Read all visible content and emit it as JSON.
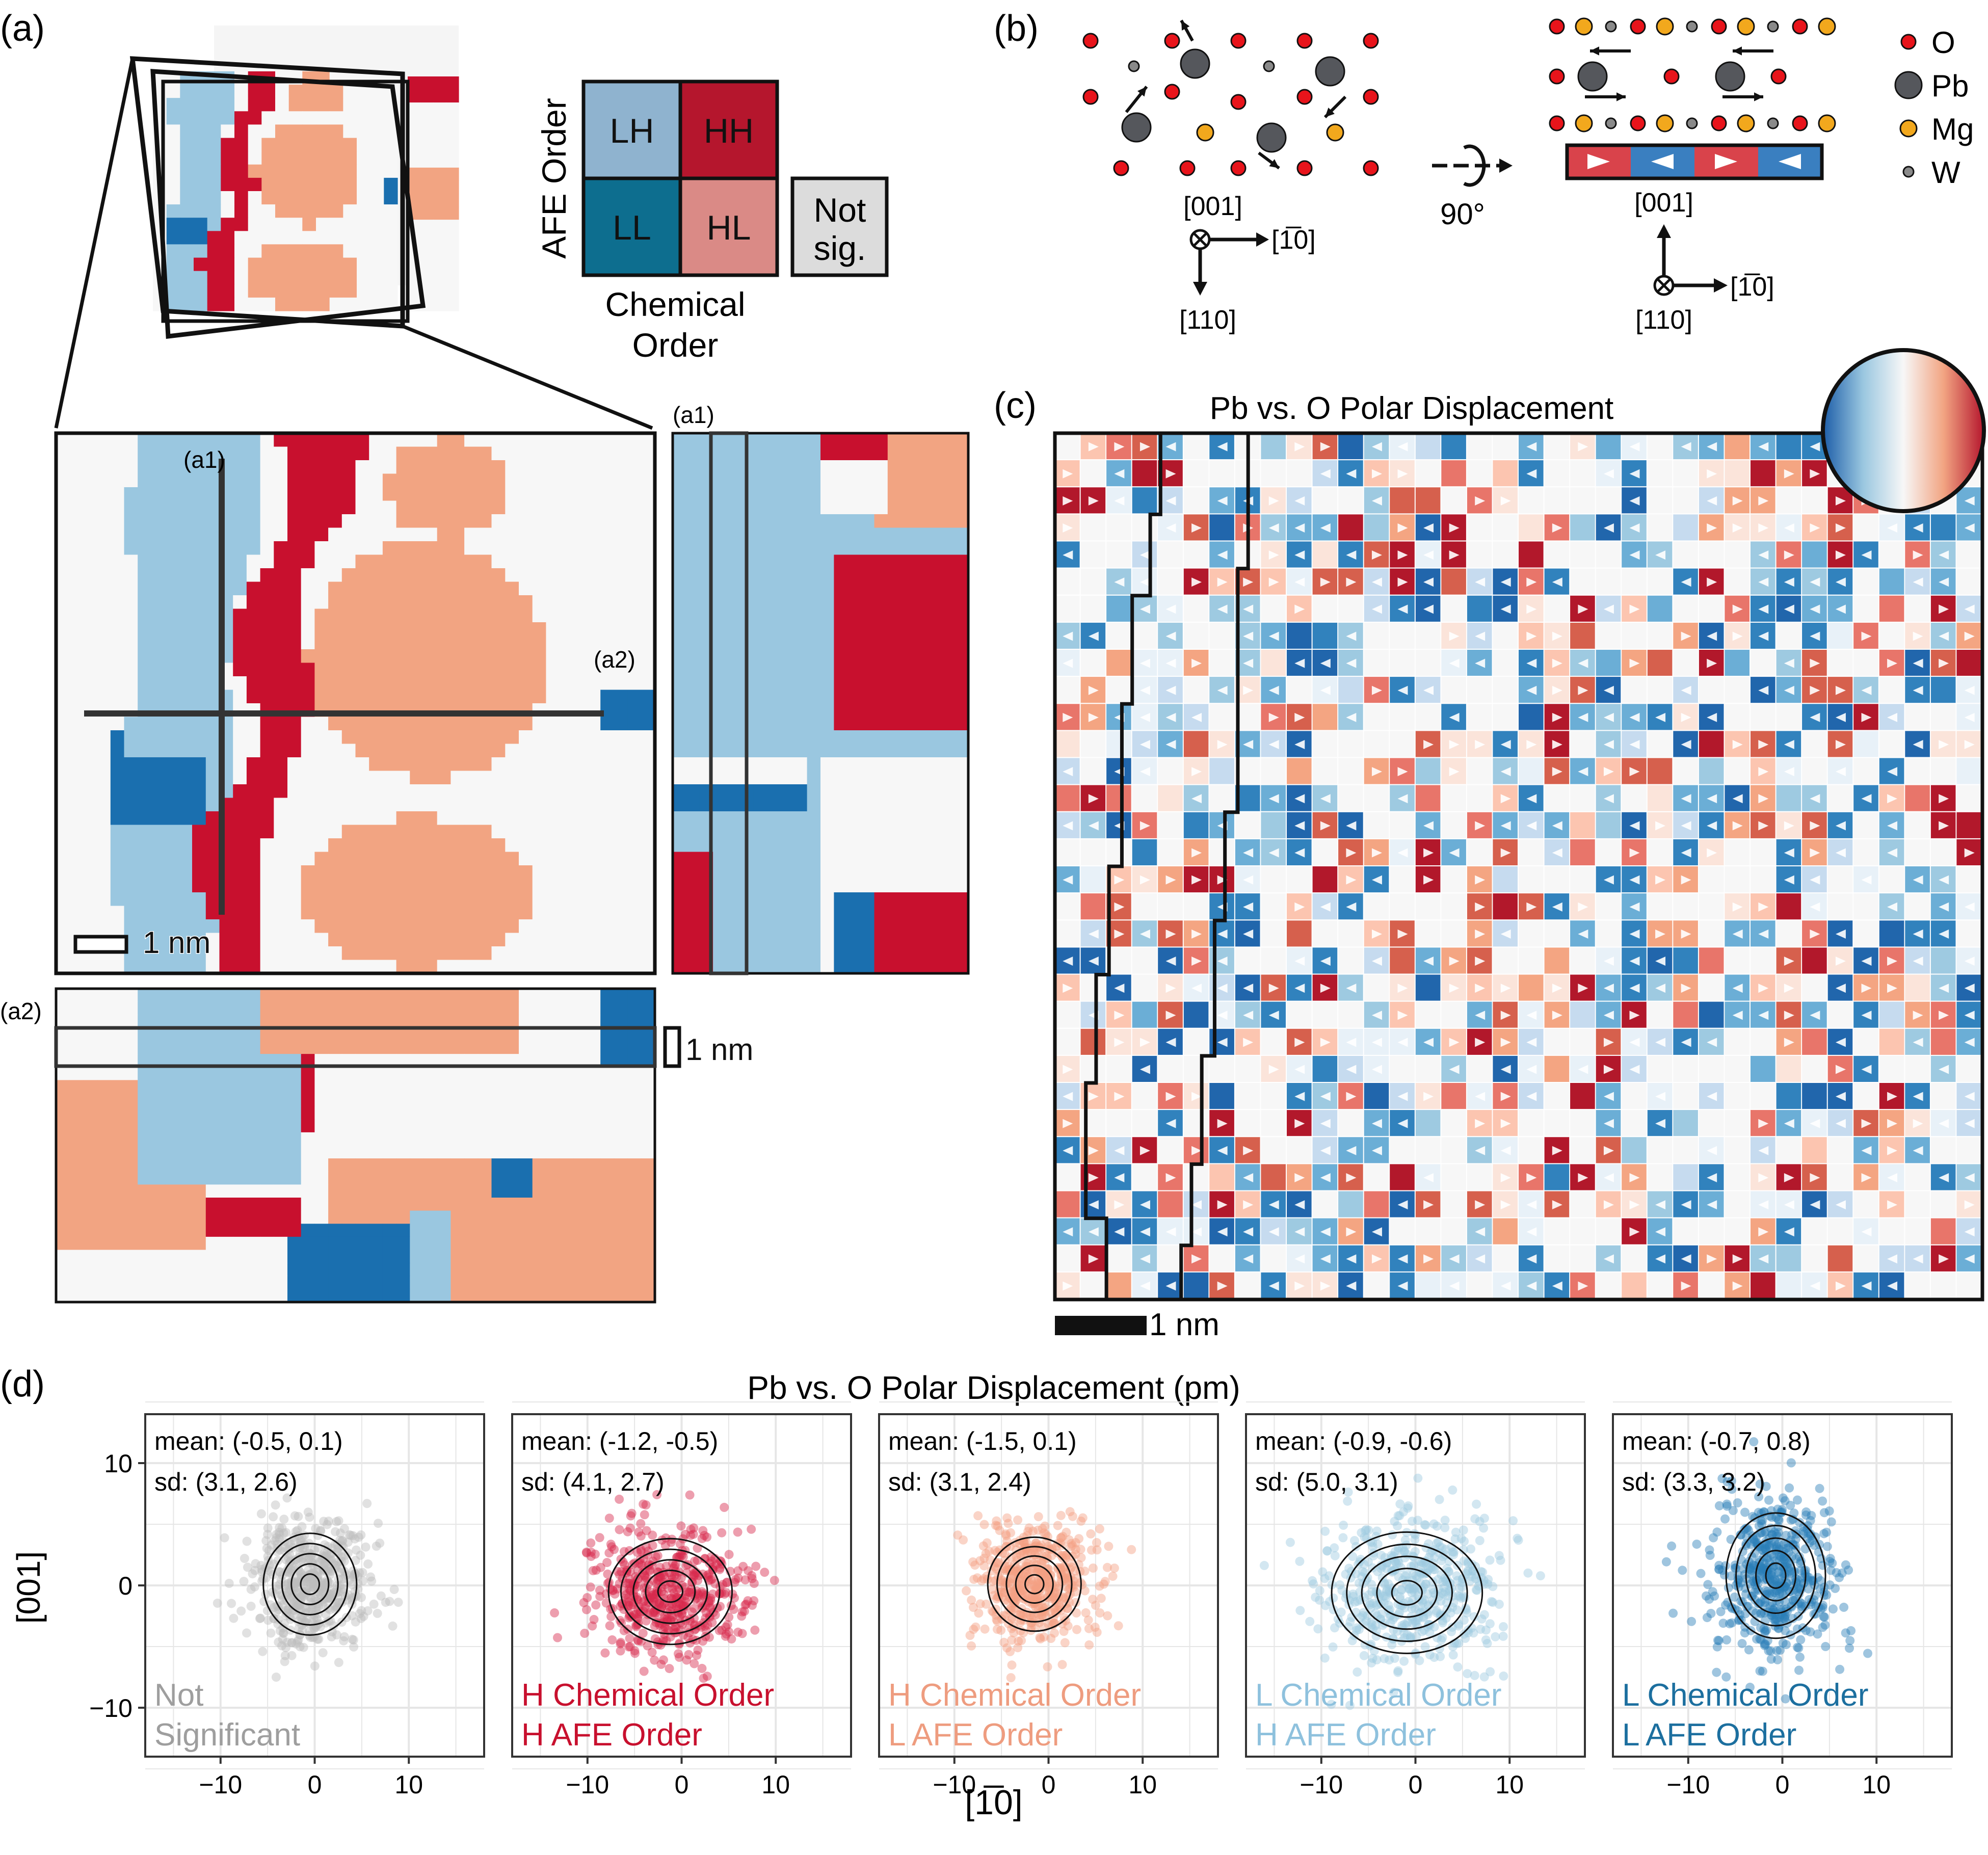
{
  "panels": {
    "a": "(a)",
    "b": "(b)",
    "c": "(c)",
    "d": "(d)",
    "a1": "(a1)",
    "a2": "(a2)"
  },
  "colors": {
    "LH": "#8fb3cf",
    "HH": "#b5162d",
    "LL": "#0d6e8f",
    "HL": "#da8a86",
    "NS": "#dcdcdc",
    "map_light_blue": "#9ac7e0",
    "map_red": "#c8102e",
    "map_salmon": "#f2a482",
    "map_blue": "#1a6faf",
    "map_bg": "#f7f7f7",
    "O": "#e8141b",
    "Pb": "#55575c",
    "Mg": "#f2a81d",
    "W": "#8a8a8a",
    "pt_ns": "#bdbdbd",
    "pt_hh": "#d6294b",
    "pt_hl": "#f3a083",
    "pt_lh": "#9ecae1",
    "pt_ll": "#2a7fb8"
  },
  "legend": {
    "LH": "LH",
    "HH": "HH",
    "LL": "LL",
    "HL": "HL",
    "not_sig_1": "Not",
    "not_sig_2": "sig.",
    "y_title": "AFE Order",
    "x_title_1": "Chemical",
    "x_title_2": "Order"
  },
  "scalebars": {
    "a_main": "1 nm",
    "a_side": "1 nm",
    "c": "1 nm"
  },
  "panel_b": {
    "axes_left": {
      "up": "[001]",
      "right": "[1̅0]",
      "down": "[110]"
    },
    "axes_right": {
      "up": "[001]",
      "right": "[1̅0]",
      "into": "[110]"
    },
    "rotation": "90°",
    "atoms": [
      {
        "symbol": "O",
        "color": "#e8141b"
      },
      {
        "symbol": "Pb",
        "color": "#55575c"
      },
      {
        "symbol": "Mg",
        "color": "#f2a81d"
      },
      {
        "symbol": "W",
        "color": "#8a8a8a"
      }
    ]
  },
  "panel_c": {
    "title": "Pb vs. O Polar Displacement"
  },
  "panel_d": {
    "title": "Pb vs. O Polar Displacement (pm)",
    "xlabel": "[1̅0]",
    "ylabel": "[001]"
  },
  "chart_data": [
    {
      "type": "scatter",
      "title": "Pb vs. O Polar Displacement (pm)",
      "xlabel": "[1̅0]",
      "ylabel": "[001]",
      "xlim": [
        -18,
        18
      ],
      "ylim": [
        -14,
        14
      ],
      "xticks": [
        "-10",
        "0",
        "10"
      ],
      "yticks": [
        "10",
        "0",
        "-10"
      ],
      "grid": true,
      "series": [
        {
          "name": "Not Significant",
          "label_1": "Not",
          "label_2": "Significant",
          "mean_text": "mean: (-0.5, 0.1)",
          "sd_text": "sd: (3.1, 2.6)",
          "mean": [
            -0.5,
            0.1
          ],
          "sd": [
            3.1,
            2.6
          ],
          "color": "#bdbdbd",
          "label_color": "#9e9e9e"
        },
        {
          "name": "H Chemical Order H AFE Order",
          "label_1": "H Chemical Order",
          "label_2": "H AFE Order",
          "mean_text": "mean: (-1.2, -0.5)",
          "sd_text": "sd: (4.1, 2.7)",
          "mean": [
            -1.2,
            -0.5
          ],
          "sd": [
            4.1,
            2.7
          ],
          "color": "#d6294b",
          "label_color": "#c8102e"
        },
        {
          "name": "H Chemical Order L AFE Order",
          "label_1": "H Chemical Order",
          "label_2": "L AFE Order",
          "mean_text": "mean: (-1.5, 0.1)",
          "sd_text": "sd: (3.1, 2.4)",
          "mean": [
            -1.5,
            0.1
          ],
          "sd": [
            3.1,
            2.4
          ],
          "color": "#f3a083",
          "label_color": "#ee9c7f"
        },
        {
          "name": "L Chemical Order H AFE Order",
          "label_1": "L Chemical Order",
          "label_2": "H AFE Order",
          "mean_text": "mean: (-0.9, -0.6)",
          "sd_text": "sd: (5.0, 3.1)",
          "mean": [
            -0.9,
            -0.6
          ],
          "sd": [
            5.0,
            3.1
          ],
          "color": "#9ecae1",
          "label_color": "#8ec1dd"
        },
        {
          "name": "L Chemical Order L AFE Order",
          "label_1": "L Chemical Order",
          "label_2": "L AFE Order",
          "mean_text": "mean: (-0.7, 0.8)",
          "sd_text": "sd: (3.3, 3.2)",
          "mean": [
            -0.7,
            0.8
          ],
          "sd": [
            3.3,
            3.2
          ],
          "color": "#2a7fb8",
          "label_color": "#1c6f9f"
        }
      ]
    }
  ]
}
